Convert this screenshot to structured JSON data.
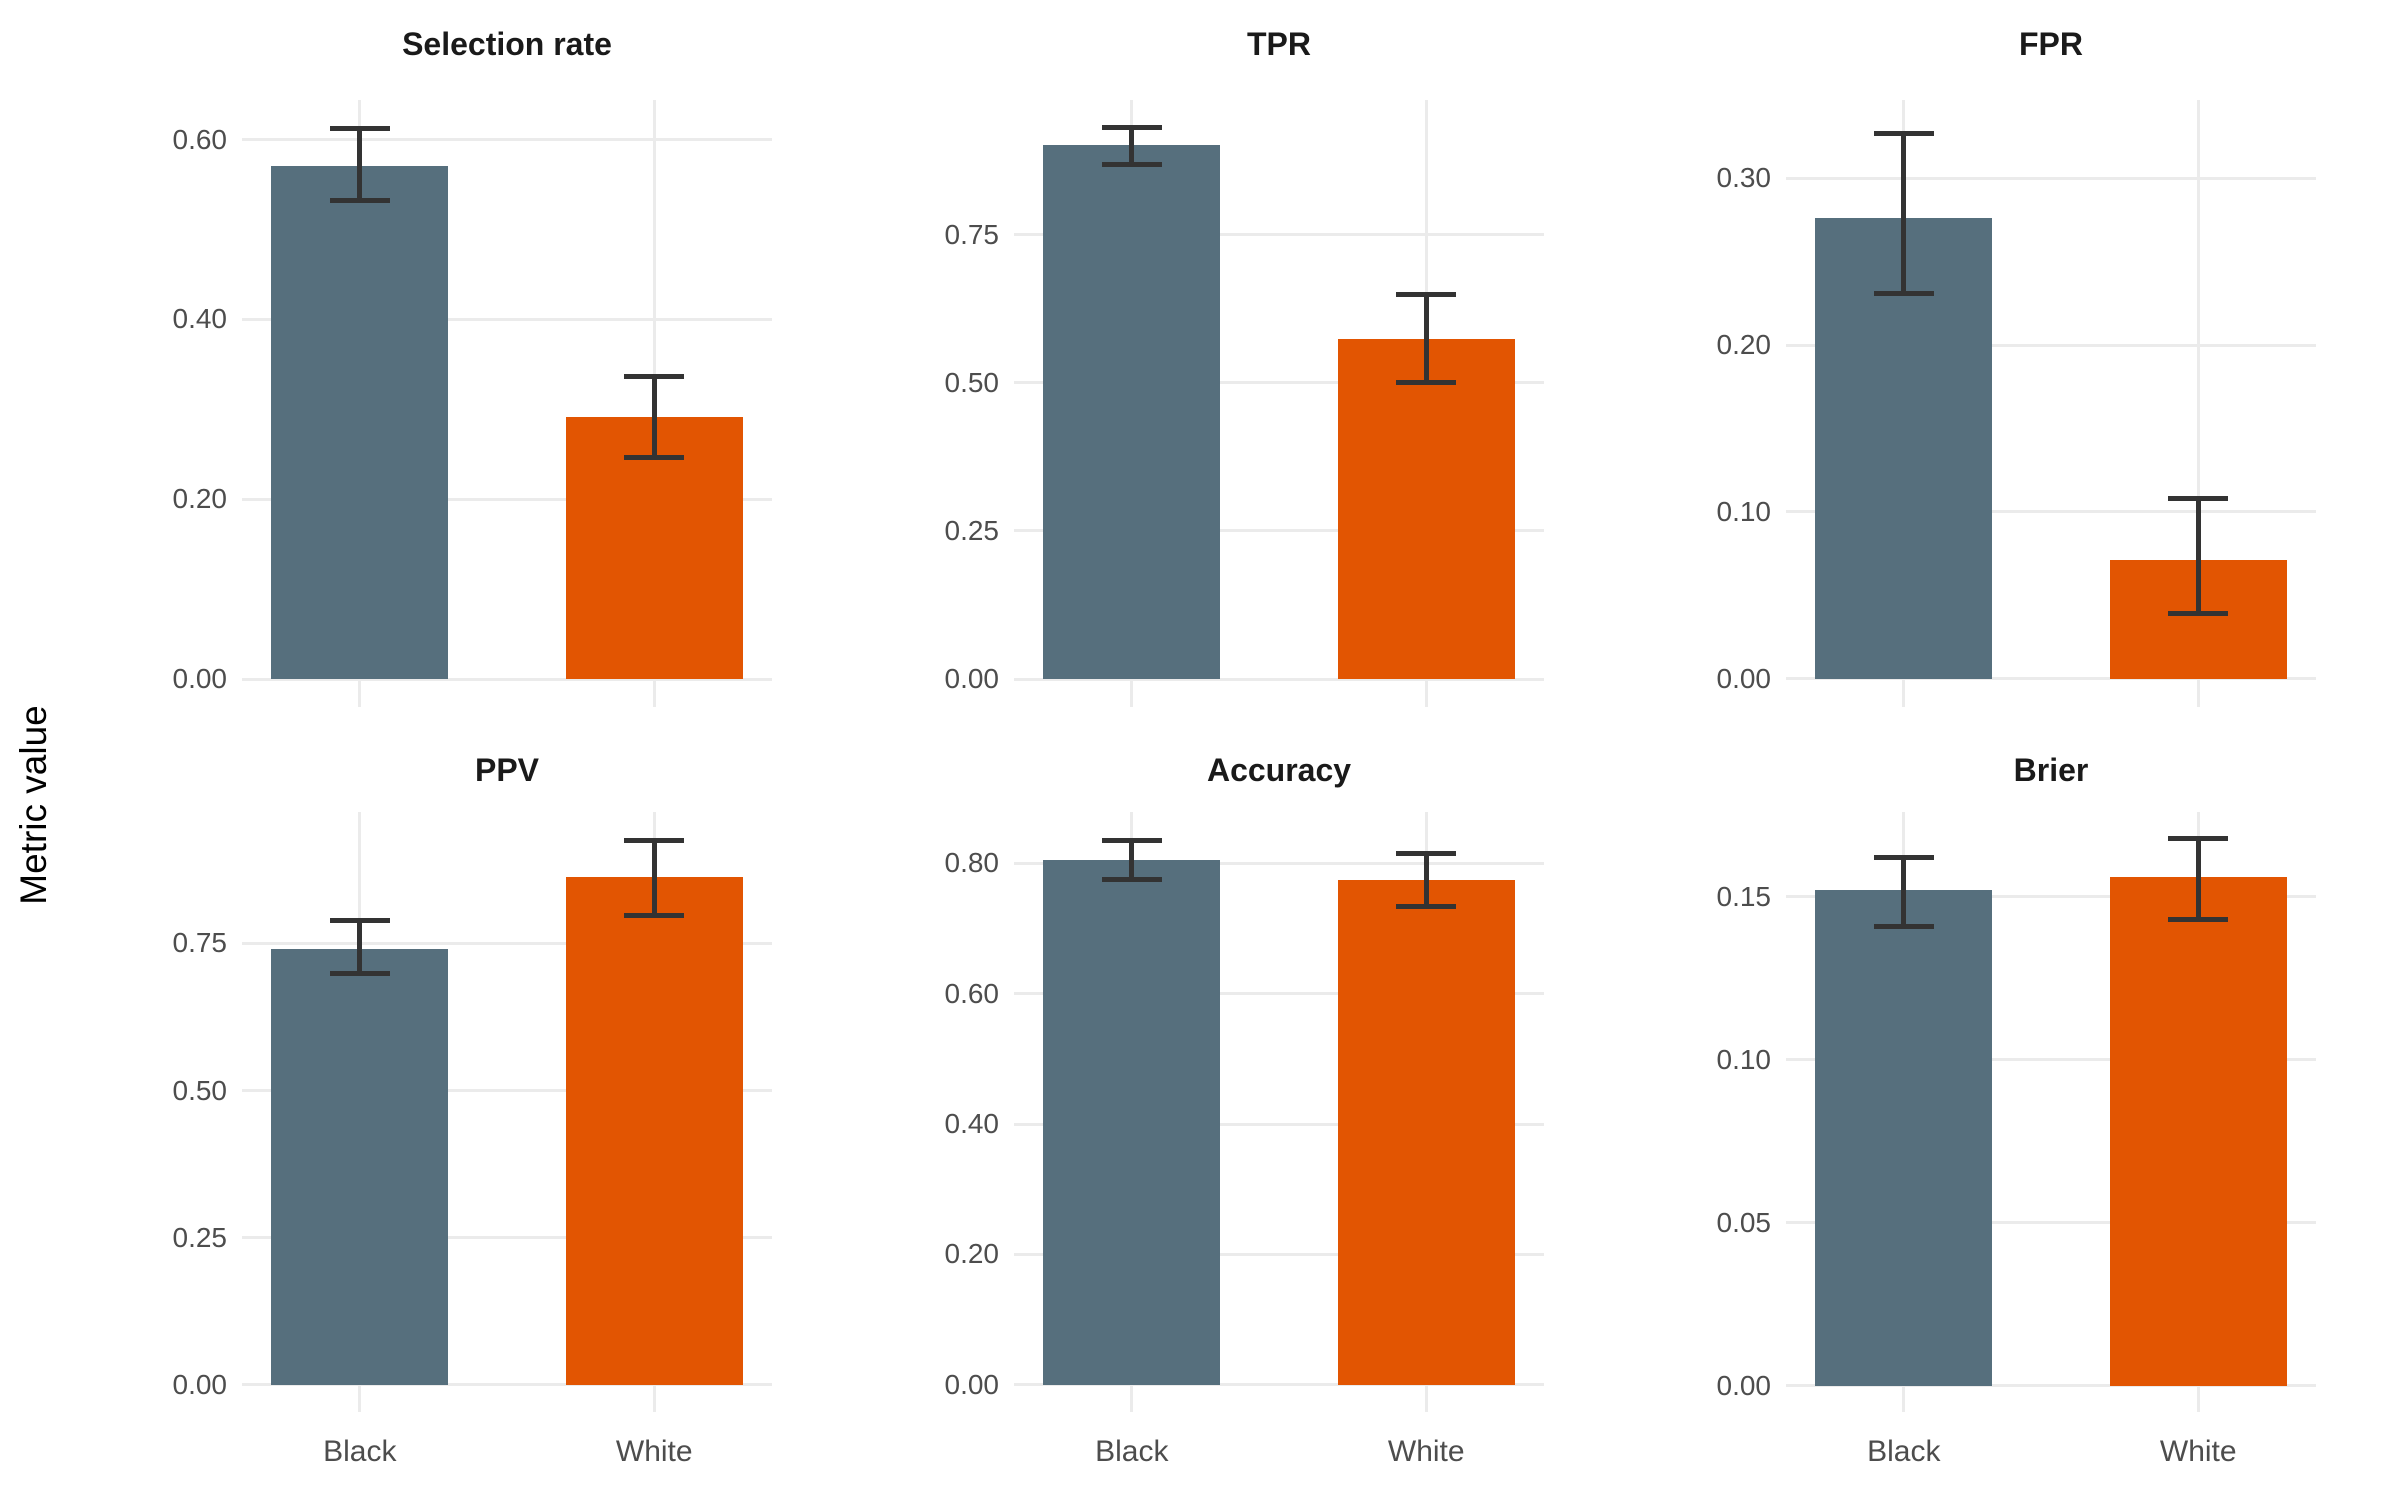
{
  "chart_data": {
    "type": "bar",
    "title": "",
    "ylabel": "Metric value",
    "categories": [
      "Black",
      "White"
    ],
    "series_colors": {
      "Black": "#566F7D",
      "White": "#E25502"
    },
    "error_bars": true,
    "legend": "none",
    "grid": "major horizontal and vertical, light gray on white",
    "facets": "2 rows x 3 columns, free y scales",
    "panels": [
      {
        "title": "Selection rate",
        "values": {
          "Black": 0.571,
          "White": 0.291
        },
        "ci": {
          "Black": [
            0.532,
            0.612
          ],
          "White": [
            0.246,
            0.336
          ]
        },
        "yticks": [
          0.0,
          0.2,
          0.4,
          0.6
        ],
        "ylim": [
          -0.031,
          0.644
        ]
      },
      {
        "title": "TPR",
        "values": {
          "Black": 0.901,
          "White": 0.573
        },
        "ci": {
          "Black": [
            0.869,
            0.93
          ],
          "White": [
            0.5,
            0.649
          ]
        },
        "yticks": [
          0.0,
          0.25,
          0.5,
          0.75
        ],
        "ylim": [
          -0.047,
          0.977
        ]
      },
      {
        "title": "FPR",
        "values": {
          "Black": 0.276,
          "White": 0.071
        },
        "ci": {
          "Black": [
            0.231,
            0.327
          ],
          "White": [
            0.039,
            0.108
          ]
        },
        "yticks": [
          0.0,
          0.1,
          0.2,
          0.3
        ],
        "ylim": [
          -0.017,
          0.347
        ]
      },
      {
        "title": "PPV",
        "values": {
          "Black": 0.741,
          "White": 0.862
        },
        "ci": {
          "Black": [
            0.699,
            0.788
          ],
          "White": [
            0.797,
            0.925
          ]
        },
        "yticks": [
          0.0,
          0.25,
          0.5,
          0.75
        ],
        "ylim": [
          -0.046,
          0.973
        ]
      },
      {
        "title": "Accuracy",
        "values": {
          "Black": 0.806,
          "White": 0.774
        },
        "ci": {
          "Black": [
            0.776,
            0.836
          ],
          "White": [
            0.734,
            0.815
          ]
        },
        "yticks": [
          0.0,
          0.2,
          0.4,
          0.6,
          0.8
        ],
        "ylim": [
          -0.042,
          0.879
        ]
      },
      {
        "title": "Brier",
        "values": {
          "Black": 0.152,
          "White": 0.156
        },
        "ci": {
          "Black": [
            0.141,
            0.162
          ],
          "White": [
            0.143,
            0.168
          ]
        },
        "yticks": [
          0.0,
          0.05,
          0.1,
          0.15
        ],
        "ylim": [
          -0.008,
          0.176
        ]
      }
    ]
  },
  "colors": {
    "background": "#FFFFFF",
    "gridline": "#EBEBEB",
    "axis_text": "#4D4D4D",
    "panel_title": "#1A1A1A",
    "error_bar": "#333333",
    "bar_black_group": "#566F7D",
    "bar_white_group": "#E25502"
  }
}
